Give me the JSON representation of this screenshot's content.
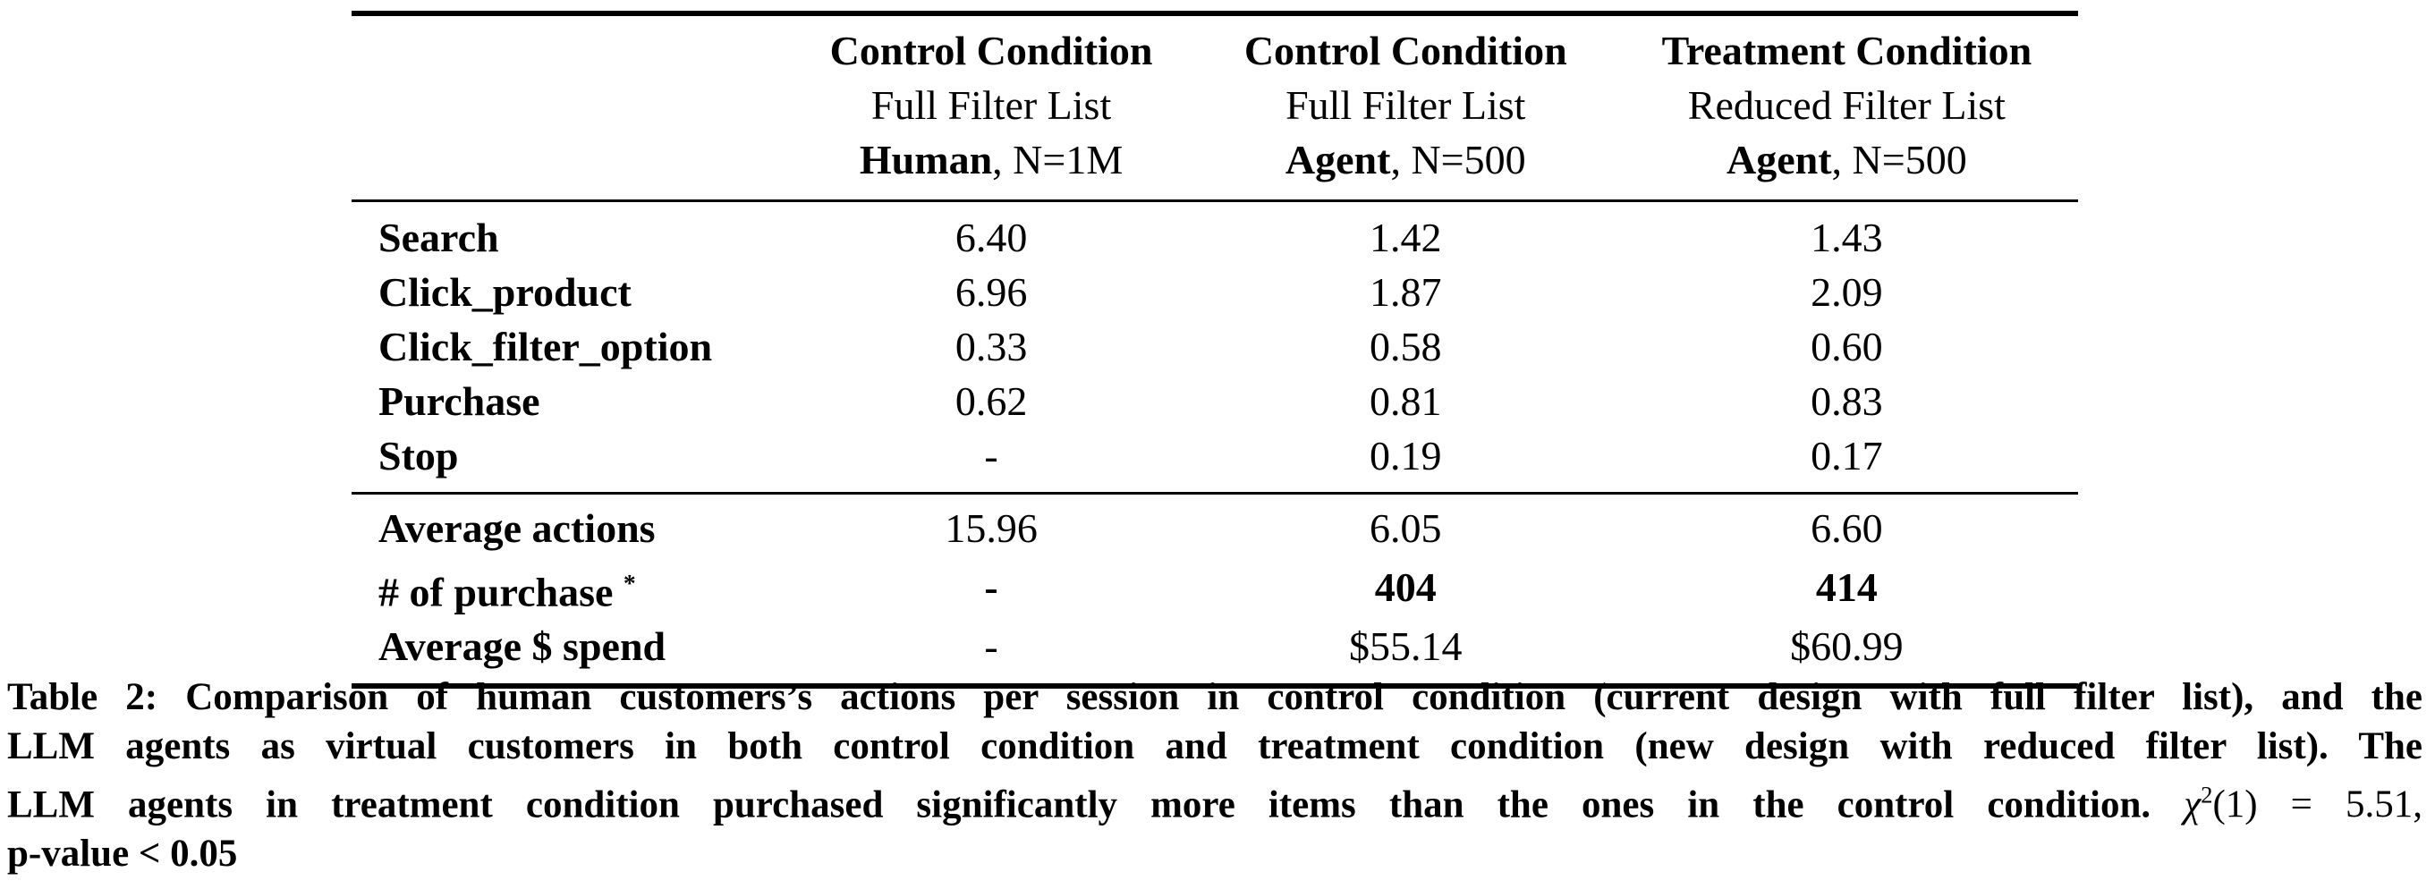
{
  "table": {
    "columns": [
      {
        "line1": "Control Condition",
        "line2": "Full Filter List",
        "line3_bold": "Human",
        "line3_rest": ", N=1M"
      },
      {
        "line1": "Control Condition",
        "line2": "Full Filter List",
        "line3_bold": "Agent",
        "line3_rest": ", N=500"
      },
      {
        "line1": "Treatment Condition",
        "line2": "Reduced Filter List",
        "line3_bold": "Agent",
        "line3_rest": ", N=500"
      }
    ],
    "body_rows": [
      {
        "label": "Search",
        "values": [
          "6.40",
          "1.42",
          "1.43"
        ]
      },
      {
        "label": "Click_product",
        "values": [
          "6.96",
          "1.87",
          "2.09"
        ]
      },
      {
        "label": "Click_filter_option",
        "values": [
          "0.33",
          "0.58",
          "0.60"
        ]
      },
      {
        "label": "Purchase",
        "values": [
          "0.62",
          "0.81",
          "0.83"
        ]
      },
      {
        "label": "Stop",
        "values": [
          "-",
          "0.19",
          "0.17"
        ]
      }
    ],
    "summary_rows": [
      {
        "label": "Average actions",
        "label_sup": "",
        "values": [
          "15.96",
          "6.05",
          "6.60"
        ]
      },
      {
        "label": "# of purchase",
        "label_sup": "*",
        "values": [
          "-",
          "404",
          "414"
        ]
      },
      {
        "label": "Average $ spend",
        "label_sup": "",
        "values": [
          "-",
          "$55.14",
          "$60.99"
        ]
      }
    ]
  },
  "caption": {
    "lines": [
      {
        "text": "Table 2: Comparison of human customers’s actions per session in control condition (current design with full filter list), and the"
      },
      {
        "text": "LLM agents as virtual customers in both control condition and treatment condition (new design with reduced filter list). The"
      },
      {
        "pre": "LLM agents in treatment condition purchased significantly more items than the ones in the control condition. ",
        "chi": "χ",
        "chi_sup": "2",
        "post": "(1) = 5.51,"
      },
      {
        "text": "p-value < 0.05"
      }
    ]
  },
  "colors": {
    "text": "#000000",
    "background": "#ffffff"
  }
}
